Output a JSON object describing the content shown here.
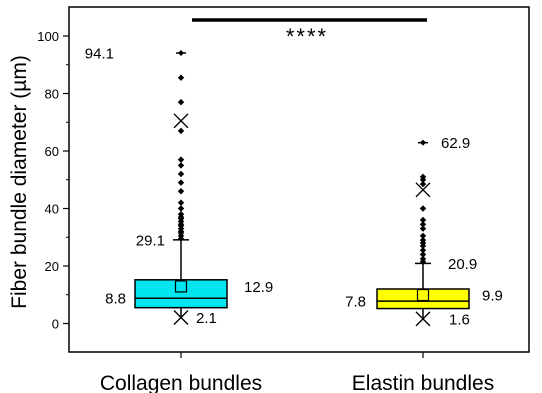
{
  "chart_data": {
    "type": "box",
    "ylabel": "Fiber bundle diameter (µm)",
    "ylim": [
      -7,
      110
    ],
    "yticks": [
      0,
      20,
      40,
      60,
      80,
      100
    ],
    "grid": false,
    "significance": "****",
    "colors": {
      "Collagen bundles": "#00e5ee",
      "Elastin bundles": "#ffff00"
    },
    "categories": [
      "Collagen bundles",
      "Elastin bundles"
    ],
    "boxes": [
      {
        "name": "Collagen bundles",
        "min": 2.1,
        "q1": 5.5,
        "median": 8.8,
        "q3": 15.2,
        "whisker_high": 29.1,
        "mean": 12.9,
        "max": 94.1,
        "p1": 2.1,
        "p99": 70.5,
        "outliers": [
          29.5,
          30.5,
          31.5,
          32,
          33,
          34,
          34.5,
          35.5,
          36.5,
          37,
          38,
          40,
          42,
          46,
          49,
          52,
          55,
          57,
          67,
          77,
          85.5,
          94.1
        ],
        "labels": {
          "max": "94.1",
          "whisker_high": "29.1",
          "median": "8.8",
          "mean": "12.9",
          "min": "2.1"
        }
      },
      {
        "name": "Elastin bundles",
        "min": 1.6,
        "q1": 5.2,
        "median": 7.8,
        "q3": 12.0,
        "whisker_high": 20.9,
        "mean": 9.9,
        "max": 62.9,
        "p1": 1.6,
        "p99": 46.5,
        "outliers": [
          21.5,
          22.5,
          24,
          25.5,
          27,
          28,
          29,
          30.5,
          33,
          34.5,
          36,
          40,
          48.5,
          50,
          51,
          62.9
        ],
        "labels": {
          "max": "62.9",
          "whisker_high": "20.9",
          "median": "7.8",
          "mean": "9.9",
          "min": "1.6"
        }
      }
    ]
  }
}
